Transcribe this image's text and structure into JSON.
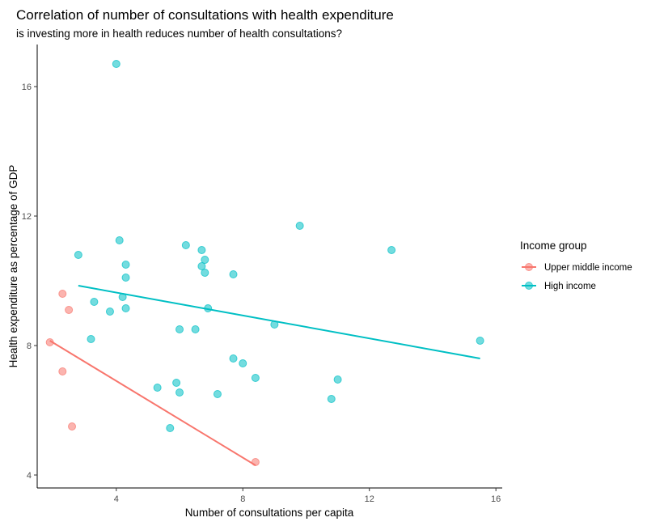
{
  "chart_data": {
    "type": "scatter",
    "title": "Correlation of number of consultations with health expenditure",
    "subtitle": "is investing more in health reduces number of health consultations?",
    "xlabel": "Number of consultations per capita",
    "ylabel": "Health expenditure as percentage of GDP",
    "xlim": [
      1.5,
      16.2
    ],
    "ylim": [
      3.6,
      17.3
    ],
    "x_ticks": [
      4,
      8,
      12,
      16
    ],
    "y_ticks": [
      4,
      8,
      12,
      16
    ],
    "grid": false,
    "legend": {
      "title": "Income group",
      "position": "right",
      "entries": [
        "Upper middle income",
        "High income"
      ]
    },
    "series": [
      {
        "name": "Upper middle income",
        "color": "#F8766D",
        "points": [
          {
            "x": 1.9,
            "y": 8.1
          },
          {
            "x": 2.3,
            "y": 9.6
          },
          {
            "x": 2.5,
            "y": 9.1
          },
          {
            "x": 2.3,
            "y": 7.2
          },
          {
            "x": 2.6,
            "y": 5.5
          },
          {
            "x": 8.4,
            "y": 4.4
          }
        ],
        "trend": {
          "x": [
            1.9,
            8.4
          ],
          "y": [
            8.15,
            4.3
          ]
        }
      },
      {
        "name": "High income",
        "color": "#00BFC4",
        "points": [
          {
            "x": 4.0,
            "y": 16.7
          },
          {
            "x": 2.8,
            "y": 10.8
          },
          {
            "x": 4.1,
            "y": 11.25
          },
          {
            "x": 4.3,
            "y": 10.5
          },
          {
            "x": 4.3,
            "y": 10.1
          },
          {
            "x": 4.2,
            "y": 9.5
          },
          {
            "x": 3.3,
            "y": 9.35
          },
          {
            "x": 3.8,
            "y": 9.05
          },
          {
            "x": 4.3,
            "y": 9.15
          },
          {
            "x": 3.2,
            "y": 8.2
          },
          {
            "x": 6.2,
            "y": 11.1
          },
          {
            "x": 6.7,
            "y": 10.95
          },
          {
            "x": 6.8,
            "y": 10.65
          },
          {
            "x": 6.7,
            "y": 10.45
          },
          {
            "x": 6.8,
            "y": 10.25
          },
          {
            "x": 7.7,
            "y": 10.2
          },
          {
            "x": 6.9,
            "y": 9.15
          },
          {
            "x": 6.0,
            "y": 8.5
          },
          {
            "x": 6.5,
            "y": 8.5
          },
          {
            "x": 9.0,
            "y": 8.65
          },
          {
            "x": 9.8,
            "y": 11.7
          },
          {
            "x": 12.7,
            "y": 10.95
          },
          {
            "x": 7.7,
            "y": 7.6
          },
          {
            "x": 8.0,
            "y": 7.45
          },
          {
            "x": 8.4,
            "y": 7.0
          },
          {
            "x": 5.9,
            "y": 6.85
          },
          {
            "x": 5.3,
            "y": 6.7
          },
          {
            "x": 6.0,
            "y": 6.55
          },
          {
            "x": 7.2,
            "y": 6.5
          },
          {
            "x": 5.7,
            "y": 5.45
          },
          {
            "x": 10.8,
            "y": 6.35
          },
          {
            "x": 11.0,
            "y": 6.95
          },
          {
            "x": 15.5,
            "y": 8.15
          }
        ],
        "trend": {
          "x": [
            2.8,
            15.5
          ],
          "y": [
            9.85,
            7.6
          ]
        }
      }
    ]
  }
}
